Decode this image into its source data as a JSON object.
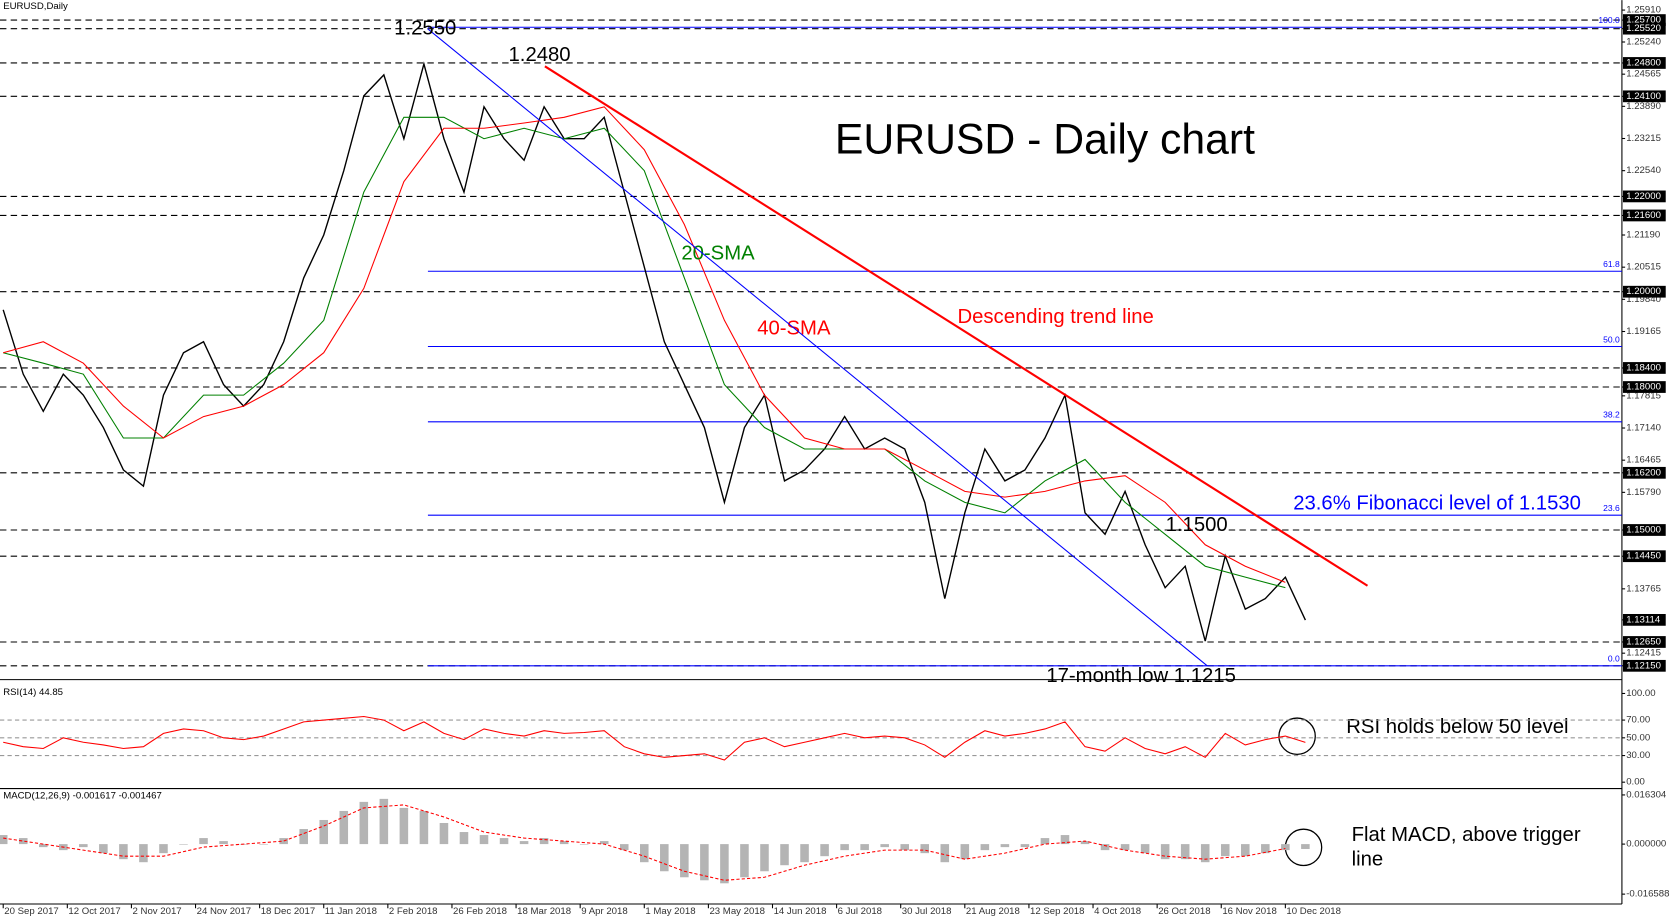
{
  "chart_data": {
    "type": "line",
    "title": "EURUSD - Daily chart",
    "symbol": "EURUSD,Daily",
    "xlim": [
      -0.8,
      404
    ],
    "xticks": [
      {
        "value": 0,
        "label": "20 Sep 2017"
      },
      {
        "value": 16,
        "label": "12 Oct 2017"
      },
      {
        "value": 32,
        "label": "2 Nov 2017"
      },
      {
        "value": 48,
        "label": "24 Nov 2017"
      },
      {
        "value": 64,
        "label": "18 Dec 2017"
      },
      {
        "value": 80,
        "label": "11 Jan 2018"
      },
      {
        "value": 96,
        "label": "2 Feb 2018"
      },
      {
        "value": 112,
        "label": "26 Feb 2018"
      },
      {
        "value": 128,
        "label": "18 Mar 2018"
      },
      {
        "value": 144,
        "label": "9 Apr 2018"
      },
      {
        "value": 160,
        "label": "1 May 2018"
      },
      {
        "value": 176,
        "label": "23 May 2018"
      },
      {
        "value": 192,
        "label": "14 Jun 2018"
      },
      {
        "value": 208,
        "label": "6 Jul 2018"
      },
      {
        "value": 224,
        "label": "30 Jul 2018"
      },
      {
        "value": 240,
        "label": "21 Aug 2018"
      },
      {
        "value": 256,
        "label": "12 Sep 2018"
      },
      {
        "value": 272,
        "label": "4 Oct 2018"
      },
      {
        "value": 288,
        "label": "26 Oct 2018"
      },
      {
        "value": 304,
        "label": "16 Nov 2018"
      },
      {
        "value": 320,
        "label": "10 Dec 2018"
      }
    ],
    "ylim": [
      1.1204,
      1.2612
    ],
    "yticks": [
      {
        "value": 1.2591,
        "label": "1.25910"
      },
      {
        "value": 1.257,
        "label": "1.25700",
        "boxed": true
      },
      {
        "value": 1.2552,
        "label": "1.25520",
        "boxed": true
      },
      {
        "value": 1.2524,
        "label": "1.25240"
      },
      {
        "value": 1.248,
        "label": "1.24800",
        "boxed": true
      },
      {
        "value": 1.24565,
        "label": "1.24565"
      },
      {
        "value": 1.241,
        "label": "1.24100",
        "boxed": true
      },
      {
        "value": 1.2389,
        "label": "1.23890"
      },
      {
        "value": 1.23215,
        "label": "1.23215"
      },
      {
        "value": 1.2254,
        "label": "1.22540"
      },
      {
        "value": 1.22,
        "label": "1.22000",
        "boxed": true
      },
      {
        "value": 1.216,
        "label": "1.21600",
        "boxed": true
      },
      {
        "value": 1.2119,
        "label": "1.21190"
      },
      {
        "value": 1.20515,
        "label": "1.20515"
      },
      {
        "value": 1.2,
        "label": "1.20000",
        "boxed": true
      },
      {
        "value": 1.1984,
        "label": "1.19840"
      },
      {
        "value": 1.19165,
        "label": "1.19165"
      },
      {
        "value": 1.184,
        "label": "1.18400",
        "boxed": true
      },
      {
        "value": 1.18,
        "label": "1.18000",
        "boxed": true
      },
      {
        "value": 1.17815,
        "label": "1.17815"
      },
      {
        "value": 1.1714,
        "label": "1.17140"
      },
      {
        "value": 1.16465,
        "label": "1.16465"
      },
      {
        "value": 1.162,
        "label": "1.16200",
        "boxed": true
      },
      {
        "value": 1.1579,
        "label": "1.15790"
      },
      {
        "value": 1.15,
        "label": "1.15000",
        "boxed": true
      },
      {
        "value": 1.1445,
        "label": "1.14450",
        "boxed": true
      },
      {
        "value": 1.13765,
        "label": "1.13765"
      },
      {
        "value": 1.13114,
        "label": "1.13114",
        "boxed": true,
        "current": true
      },
      {
        "value": 1.1265,
        "label": "1.12650",
        "boxed": true
      },
      {
        "value": 1.12415,
        "label": "1.12415"
      },
      {
        "value": 1.1215,
        "label": "1.12150",
        "boxed": true
      }
    ],
    "series": [
      {
        "color": "#000000",
        "x": [
          0,
          5,
          10,
          15,
          20,
          25,
          30,
          35,
          40,
          45,
          50,
          55,
          60,
          65,
          70,
          75,
          80,
          85,
          90,
          95,
          100,
          105,
          110,
          115,
          120,
          125,
          130,
          135,
          140,
          145,
          150,
          155,
          160,
          165,
          170,
          175,
          180,
          185,
          190,
          195,
          200,
          205,
          210,
          215,
          220,
          225,
          230,
          235,
          240,
          245,
          250,
          255,
          260,
          265,
          270,
          275,
          280,
          285,
          290,
          295,
          300,
          305,
          310,
          315,
          320,
          325
        ],
        "values": [
          1.1962,
          1.1827,
          1.1749,
          1.1827,
          1.1783,
          1.1715,
          1.1626,
          1.1592,
          1.1783,
          1.1872,
          1.1895,
          1.1805,
          1.176,
          1.1805,
          1.1895,
          1.2029,
          1.2119,
          1.2254,
          1.2411,
          1.2455,
          1.2321,
          1.2478,
          1.2321,
          1.2209,
          1.2388,
          1.2321,
          1.2276,
          1.2388,
          1.2321,
          1.2321,
          1.2366,
          1.2209,
          1.2052,
          1.1895,
          1.1805,
          1.1715,
          1.1558,
          1.1715,
          1.1783,
          1.1603,
          1.1626,
          1.167,
          1.1738,
          1.167,
          1.1693,
          1.167,
          1.1558,
          1.1356,
          1.1536,
          1.167,
          1.1603,
          1.1626,
          1.1693,
          1.1783,
          1.1536,
          1.1491,
          1.1581,
          1.1469,
          1.1379,
          1.1424,
          1.1267,
          1.1446,
          1.1334,
          1.1356,
          1.1401,
          1.1311
        ]
      },
      {
        "name": "20-SMA",
        "color": "#008000",
        "x": [
          0,
          10,
          20,
          30,
          40,
          50,
          60,
          70,
          80,
          90,
          100,
          110,
          120,
          130,
          140,
          150,
          160,
          170,
          180,
          190,
          200,
          210,
          220,
          230,
          240,
          250,
          260,
          270,
          280,
          290,
          300,
          310,
          320
        ],
        "values": [
          1.1872,
          1.185,
          1.1827,
          1.1693,
          1.1693,
          1.1783,
          1.1783,
          1.185,
          1.194,
          1.2209,
          1.2366,
          1.2366,
          1.2321,
          1.2343,
          1.2321,
          1.2343,
          1.2254,
          1.2029,
          1.1805,
          1.1715,
          1.167,
          1.167,
          1.167,
          1.1603,
          1.1558,
          1.1536,
          1.1603,
          1.1648,
          1.1558,
          1.1491,
          1.1424,
          1.1401,
          1.1379
        ]
      },
      {
        "name": "40-SMA",
        "color": "#ff0000",
        "x": [
          0,
          10,
          20,
          30,
          40,
          50,
          60,
          70,
          80,
          90,
          100,
          110,
          120,
          130,
          140,
          150,
          160,
          170,
          180,
          190,
          200,
          210,
          220,
          230,
          240,
          250,
          260,
          270,
          280,
          290,
          300,
          310,
          320
        ],
        "values": [
          1.1872,
          1.1895,
          1.185,
          1.176,
          1.1693,
          1.1738,
          1.176,
          1.1805,
          1.1872,
          1.2007,
          1.2231,
          1.2343,
          1.2343,
          1.2354,
          1.2366,
          1.2388,
          1.2298,
          1.2141,
          1.194,
          1.1783,
          1.1693,
          1.167,
          1.167,
          1.1626,
          1.1581,
          1.1569,
          1.1581,
          1.1603,
          1.1614,
          1.1558,
          1.1469,
          1.1424,
          1.139
        ]
      }
    ],
    "trendlines": [
      {
        "name": "Descending trend line",
        "color": "#ff0000",
        "x": [
          135.2,
          340.5
        ],
        "values": [
          1.2473,
          1.1383
        ]
      },
      {
        "color": "#0000ff",
        "x": [
          105.9,
          300.5
        ],
        "values": [
          1.2552,
          1.1215
        ]
      }
    ],
    "fibonacci": {
      "x_start": 106,
      "color": "#0000ff",
      "note": "23.6% Fibonacci level of 1.1530",
      "levels": [
        {
          "value": 1.2555,
          "label": "100.0"
        },
        {
          "value": 1.2043,
          "label": "61.8"
        },
        {
          "value": 1.1885,
          "label": "50.0"
        },
        {
          "value": 1.1727,
          "label": "38.2"
        },
        {
          "value": 1.1531,
          "label": "23.6"
        },
        {
          "value": 1.1215,
          "label": "0.0"
        }
      ]
    },
    "annotations": [
      {
        "text": "1.2550"
      },
      {
        "text": "1.2480"
      },
      {
        "text": "1.1500"
      },
      {
        "text": "17-month low 1.1215"
      }
    ],
    "rsi": {
      "type": "line",
      "label": "RSI(14) 44.85",
      "note": "RSI holds below 50 level",
      "color": "#ff0000",
      "ylim": [
        -3.6,
        108.4
      ],
      "yticks": [
        {
          "value": 100,
          "label": "100.00"
        },
        {
          "value": 70,
          "label": "70.00",
          "dashed": true
        },
        {
          "value": 50,
          "label": "50.00",
          "dashed": true
        },
        {
          "value": 30,
          "label": "30.00",
          "dashed": true
        },
        {
          "value": 0,
          "label": "0.00"
        }
      ],
      "x": [
        0,
        5,
        10,
        15,
        20,
        25,
        30,
        35,
        40,
        45,
        50,
        55,
        60,
        65,
        70,
        75,
        80,
        85,
        90,
        95,
        100,
        105,
        110,
        115,
        120,
        125,
        130,
        135,
        140,
        145,
        150,
        155,
        160,
        165,
        170,
        175,
        180,
        185,
        190,
        195,
        200,
        205,
        210,
        215,
        220,
        225,
        230,
        235,
        240,
        245,
        250,
        255,
        260,
        265,
        270,
        275,
        280,
        285,
        290,
        295,
        300,
        305,
        310,
        315,
        320,
        325
      ],
      "values": [
        45,
        40,
        38,
        50,
        45,
        42,
        38,
        40,
        55,
        60,
        58,
        50,
        48,
        52,
        60,
        68,
        70,
        72,
        74,
        70,
        58,
        68,
        55,
        48,
        60,
        55,
        52,
        58,
        55,
        56,
        58,
        40,
        32,
        28,
        30,
        32,
        25,
        45,
        50,
        40,
        45,
        50,
        55,
        50,
        52,
        50,
        42,
        28,
        45,
        58,
        52,
        55,
        60,
        68,
        40,
        35,
        50,
        38,
        32,
        40,
        28,
        55,
        42,
        48,
        52,
        44.85
      ]
    },
    "macd": {
      "type": "bar",
      "label": "MACD(12,26,9) -0.001617 -0.001467",
      "note_lines": [
        "Flat MACD, above trigger",
        "line"
      ],
      "ylim": [
        -0.0195,
        0.0177
      ],
      "yticks": [
        0.016304,
        {
          "value": 0,
          "label": "0.000000"
        },
        -0.016588
      ],
      "histogram": {
        "color": "#b4b4b4",
        "x": [
          0,
          5,
          10,
          15,
          20,
          25,
          30,
          35,
          40,
          45,
          50,
          55,
          60,
          65,
          70,
          75,
          80,
          85,
          90,
          95,
          100,
          105,
          110,
          115,
          120,
          125,
          130,
          135,
          140,
          145,
          150,
          155,
          160,
          165,
          170,
          175,
          180,
          185,
          190,
          195,
          200,
          205,
          210,
          215,
          220,
          225,
          230,
          235,
          240,
          245,
          250,
          255,
          260,
          265,
          270,
          275,
          280,
          285,
          290,
          295,
          300,
          305,
          310,
          315,
          320,
          325
        ],
        "values": [
          0.003,
          0.002,
          -0.001,
          -0.002,
          -0.001,
          -0.003,
          -0.005,
          -0.006,
          -0.003,
          0.0,
          0.002,
          0.001,
          0.0,
          0.0,
          0.002,
          0.005,
          0.008,
          0.011,
          0.014,
          0.015,
          0.012,
          0.011,
          0.007,
          0.004,
          0.003,
          0.002,
          0.001,
          0.002,
          0.001,
          0.0,
          0.001,
          -0.002,
          -0.006,
          -0.009,
          -0.011,
          -0.012,
          -0.013,
          -0.011,
          -0.009,
          -0.007,
          -0.006,
          -0.004,
          -0.002,
          -0.002,
          -0.001,
          -0.002,
          -0.003,
          -0.006,
          -0.005,
          -0.002,
          -0.001,
          -0.001,
          0.002,
          0.003,
          0.001,
          -0.002,
          -0.002,
          -0.003,
          -0.005,
          -0.005,
          -0.006,
          -0.004,
          -0.004,
          -0.003,
          -0.002,
          -0.001617
        ]
      },
      "signal": {
        "color": "#ff0000",
        "x": [
          0,
          10,
          20,
          30,
          40,
          50,
          60,
          70,
          80,
          90,
          100,
          110,
          120,
          130,
          140,
          150,
          160,
          170,
          180,
          190,
          200,
          210,
          220,
          230,
          240,
          250,
          260,
          270,
          280,
          290,
          300,
          310,
          320
        ],
        "values": [
          0.002,
          0.0,
          -0.002,
          -0.004,
          -0.004,
          -0.001,
          0.0,
          0.001,
          0.006,
          0.012,
          0.013,
          0.009,
          0.004,
          0.002,
          0.001,
          0.0,
          -0.004,
          -0.009,
          -0.012,
          -0.011,
          -0.007,
          -0.004,
          -0.002,
          -0.002,
          -0.005,
          -0.003,
          0.0,
          0.001,
          -0.002,
          -0.004,
          -0.005,
          -0.004,
          -0.001467
        ]
      }
    }
  }
}
